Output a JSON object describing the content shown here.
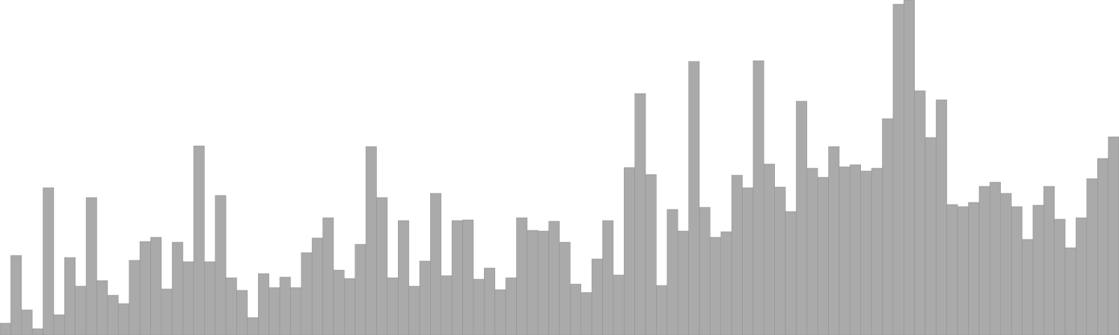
{
  "chart_data": {
    "type": "bar",
    "title": "",
    "xlabel": "",
    "ylabel": "",
    "ylim": [
      0,
      480
    ],
    "grid": false,
    "legend": "none",
    "bar_color": "#aaaaaa",
    "values": [
      17,
      114,
      36,
      9,
      211,
      29,
      111,
      70,
      197,
      78,
      57,
      45,
      107,
      134,
      140,
      66,
      133,
      105,
      271,
      105,
      200,
      82,
      64,
      25,
      88,
      68,
      83,
      68,
      118,
      139,
      168,
      93,
      81,
      130,
      270,
      197,
      82,
      164,
      70,
      106,
      203,
      85,
      164,
      165,
      80,
      96,
      65,
      82,
      168,
      150,
      149,
      163,
      133,
      73,
      61,
      109,
      164,
      86,
      240,
      346,
      230,
      71,
      180,
      149,
      392,
      183,
      140,
      148,
      229,
      211,
      393,
      245,
      212,
      177,
      335,
      239,
      226,
      270,
      241,
      244,
      235,
      239,
      310,
      474,
      480,
      350,
      283,
      337,
      187,
      184,
      190,
      213,
      219,
      203,
      184,
      137,
      186,
      213,
      166,
      125,
      168,
      224,
      253,
      284
    ]
  }
}
